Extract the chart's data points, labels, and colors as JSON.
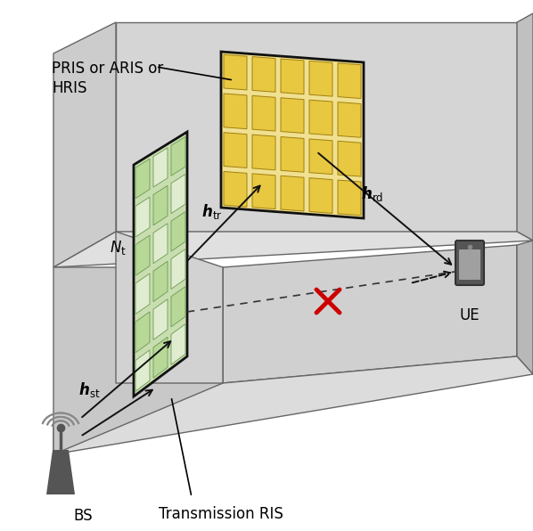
{
  "bg_color": "#ffffff",
  "wall_light": "#d8d8d8",
  "wall_mid": "#c8c8c8",
  "wall_dark": "#b8b8b8",
  "wall_edge": "#666666",
  "ris_reflect_bg": "#f0e090",
  "ris_reflect_cell": "#e8c840",
  "ris_reflect_border": "#a08010",
  "ris_transmit_bg": "#c8ddb0",
  "ris_transmit_cell_a": "#c0d8a0",
  "ris_transmit_cell_b": "#e8f0e0",
  "panel_frame": "#111111",
  "arrow_color": "#111111",
  "cross_color": "#cc0000",
  "bs_color": "#555555",
  "wave_color": "#888888",
  "ue_color": "#555555",
  "label_reflect": "PRIS or ARIS or\nHRIS",
  "label_hrd": "$\\boldsymbol{h}_{\\rm rd}$",
  "label_htr": "$\\boldsymbol{h}_{\\rm tr}$",
  "label_hst": "$\\boldsymbol{h}_{\\rm st}$",
  "label_Nt": "$N_{\\rm t}$",
  "label_BS": "BS",
  "label_UE": "UE",
  "label_trans": "Transmission RIS"
}
